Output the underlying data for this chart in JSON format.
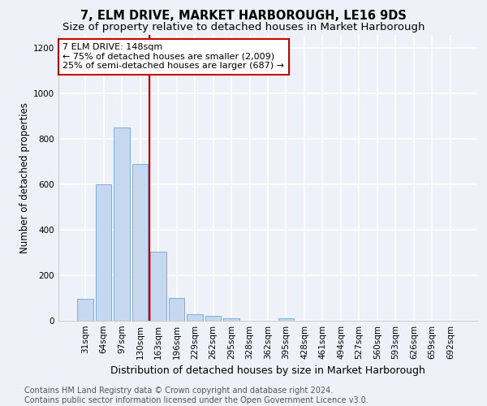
{
  "title": "7, ELM DRIVE, MARKET HARBOROUGH, LE16 9DS",
  "subtitle": "Size of property relative to detached houses in Market Harborough",
  "xlabel": "Distribution of detached houses by size in Market Harborough",
  "ylabel": "Number of detached properties",
  "bar_color": "#c5d8f0",
  "bar_edge_color": "#7aafd4",
  "categories": [
    "31sqm",
    "64sqm",
    "97sqm",
    "130sqm",
    "163sqm",
    "196sqm",
    "229sqm",
    "262sqm",
    "295sqm",
    "328sqm",
    "362sqm",
    "395sqm",
    "428sqm",
    "461sqm",
    "494sqm",
    "527sqm",
    "560sqm",
    "593sqm",
    "626sqm",
    "659sqm",
    "692sqm"
  ],
  "values": [
    95,
    600,
    850,
    690,
    305,
    100,
    30,
    22,
    12,
    0,
    0,
    12,
    0,
    0,
    0,
    0,
    0,
    0,
    0,
    0,
    0
  ],
  "ylim": [
    0,
    1260
  ],
  "yticks": [
    0,
    200,
    400,
    600,
    800,
    1000,
    1200
  ],
  "vline_x": 3.5,
  "vline_color": "#cc0000",
  "annotation_line1": "7 ELM DRIVE: 148sqm",
  "annotation_line2": "← 75% of detached houses are smaller (2,009)",
  "annotation_line3": "25% of semi-detached houses are larger (687) →",
  "annotation_box_color": "#ffffff",
  "annotation_box_edge_color": "#cc0000",
  "footer_line1": "Contains HM Land Registry data © Crown copyright and database right 2024.",
  "footer_line2": "Contains public sector information licensed under the Open Government Licence v3.0.",
  "background_color": "#eef2f8",
  "title_fontsize": 10.5,
  "subtitle_fontsize": 9.5,
  "xlabel_fontsize": 9,
  "ylabel_fontsize": 8.5,
  "footer_fontsize": 7,
  "tick_fontsize": 7.5,
  "annotation_fontsize": 8
}
